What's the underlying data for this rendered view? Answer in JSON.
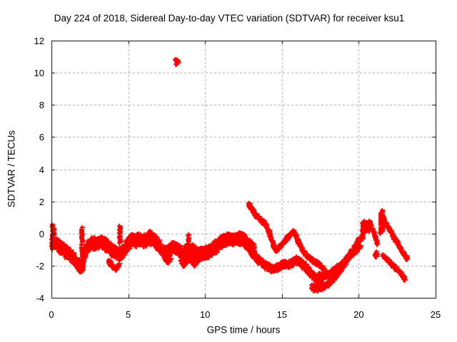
{
  "chart_data": {
    "type": "scatter",
    "title": "Day 224 of 2018, Sidereal Day-to-day VTEC variation (SDTVAR) for receiver ksu1",
    "xlabel": "GPS time / hours",
    "ylabel": "SDTVAR / TECUs",
    "xlim": [
      0,
      25
    ],
    "ylim": [
      -4,
      12
    ],
    "xticks": [
      0,
      5,
      10,
      15,
      20,
      25
    ],
    "yticks": [
      -4,
      -2,
      0,
      2,
      4,
      6,
      8,
      10,
      12
    ],
    "grid": true,
    "legend": "none",
    "marker": "plus",
    "colors": {
      "points": "#ff0000",
      "grid": "#a6a6a6",
      "border": "#000000",
      "background": "#ffffff",
      "text": "#000000"
    },
    "tracks": [
      {
        "name": "main-band",
        "halfwidth": 0.42,
        "points": [
          [
            0.0,
            -0.45
          ],
          [
            0.25,
            -0.6
          ],
          [
            0.5,
            -0.8
          ],
          [
            0.8,
            -1.0
          ],
          [
            1.1,
            -1.25
          ],
          [
            1.4,
            -1.55
          ],
          [
            1.7,
            -1.85
          ],
          [
            1.95,
            -2.05
          ],
          [
            2.1,
            -1.45
          ],
          [
            2.3,
            -0.85
          ],
          [
            2.55,
            -0.6
          ],
          [
            2.85,
            -0.65
          ],
          [
            3.15,
            -0.5
          ],
          [
            3.45,
            -0.6
          ],
          [
            3.75,
            -0.9
          ],
          [
            4.05,
            -1.1
          ],
          [
            4.35,
            -1.3
          ],
          [
            4.6,
            -1.2
          ],
          [
            4.9,
            -0.75
          ],
          [
            5.2,
            -0.35
          ],
          [
            5.5,
            -0.45
          ],
          [
            5.8,
            -0.35
          ],
          [
            6.1,
            -0.45
          ],
          [
            6.4,
            -0.25
          ],
          [
            6.7,
            -0.45
          ],
          [
            7.0,
            -0.8
          ],
          [
            7.3,
            -1.1
          ],
          [
            7.6,
            -1.15
          ],
          [
            7.9,
            -0.8
          ],
          [
            8.2,
            -0.9
          ],
          [
            8.5,
            -1.25
          ],
          [
            8.8,
            -1.05
          ],
          [
            9.1,
            -0.95
          ],
          [
            9.4,
            -1.2
          ],
          [
            9.7,
            -1.3
          ],
          [
            10.0,
            -1.2
          ],
          [
            10.3,
            -1.05
          ],
          [
            10.6,
            -0.85
          ],
          [
            10.9,
            -0.6
          ],
          [
            11.2,
            -0.4
          ],
          [
            11.5,
            -0.3
          ],
          [
            11.8,
            -0.4
          ],
          [
            12.1,
            -0.3
          ],
          [
            12.4,
            -0.3
          ],
          [
            12.7,
            -0.6
          ],
          [
            13.0,
            -0.85
          ],
          [
            13.2,
            -1.0
          ]
        ]
      },
      {
        "name": "dip-spur-2h",
        "halfwidth": 0.13,
        "points": [
          [
            1.65,
            -2.1
          ],
          [
            1.85,
            -2.3
          ],
          [
            2.05,
            -2.15
          ]
        ]
      },
      {
        "name": "dip-spur-4h",
        "halfwidth": 0.15,
        "points": [
          [
            3.7,
            -1.7
          ],
          [
            3.95,
            -2.05
          ],
          [
            4.2,
            -2.2
          ],
          [
            4.4,
            -1.9
          ]
        ]
      },
      {
        "name": "dip-spur-7.5h",
        "halfwidth": 0.12,
        "points": [
          [
            7.3,
            -1.5
          ],
          [
            7.55,
            -1.75
          ],
          [
            7.75,
            -1.55
          ]
        ]
      },
      {
        "name": "dip-spur-8.6h",
        "halfwidth": 0.12,
        "points": [
          [
            8.4,
            -1.65
          ],
          [
            8.6,
            -1.95
          ],
          [
            8.8,
            -1.75
          ]
        ]
      },
      {
        "name": "dip-spur-9.3h",
        "halfwidth": 0.18,
        "points": [
          [
            9.0,
            -1.55
          ],
          [
            9.3,
            -1.85
          ],
          [
            9.55,
            -1.6
          ]
        ]
      },
      {
        "name": "peak-streak-13h",
        "halfwidth": 0.13,
        "points": [
          [
            12.82,
            1.85
          ],
          [
            13.0,
            1.55
          ],
          [
            13.2,
            1.25
          ],
          [
            13.45,
            1.0
          ],
          [
            13.7,
            0.8
          ],
          [
            13.95,
            0.55
          ],
          [
            14.1,
            0.2
          ],
          [
            14.3,
            -0.4
          ],
          [
            14.5,
            -0.9
          ],
          [
            14.65,
            -1.0
          ],
          [
            14.85,
            -0.85
          ],
          [
            15.1,
            -0.55
          ],
          [
            15.35,
            -0.25
          ],
          [
            15.6,
            0.0
          ],
          [
            15.75,
            0.1
          ],
          [
            15.9,
            -0.15
          ],
          [
            16.05,
            -0.5
          ],
          [
            16.25,
            -0.9
          ],
          [
            16.5,
            -1.25
          ],
          [
            16.75,
            -1.5
          ],
          [
            17.05,
            -1.7
          ],
          [
            17.35,
            -1.85
          ],
          [
            17.65,
            -2.15
          ],
          [
            17.95,
            -2.5
          ]
        ]
      },
      {
        "name": "lower-band-14h",
        "halfwidth": 0.25,
        "points": [
          [
            12.5,
            -0.5
          ],
          [
            12.75,
            -0.8
          ],
          [
            13.0,
            -1.15
          ],
          [
            13.25,
            -1.45
          ],
          [
            13.5,
            -1.65
          ],
          [
            13.75,
            -1.85
          ],
          [
            14.0,
            -2.0
          ],
          [
            14.25,
            -2.15
          ],
          [
            14.5,
            -2.2
          ],
          [
            14.75,
            -2.1
          ],
          [
            15.0,
            -1.95
          ],
          [
            15.25,
            -1.85
          ],
          [
            15.5,
            -1.9
          ],
          [
            15.7,
            -1.75
          ],
          [
            15.95,
            -1.65
          ],
          [
            16.2,
            -1.8
          ],
          [
            16.45,
            -2.05
          ],
          [
            16.7,
            -2.3
          ],
          [
            16.95,
            -2.55
          ],
          [
            17.2,
            -2.8
          ],
          [
            17.45,
            -3.0
          ],
          [
            17.6,
            -3.15
          ]
        ]
      },
      {
        "name": "trough-rise-18h",
        "halfwidth": 0.2,
        "points": [
          [
            16.9,
            -3.25
          ],
          [
            17.15,
            -3.4
          ],
          [
            17.4,
            -3.35
          ],
          [
            17.65,
            -3.3
          ],
          [
            17.9,
            -3.15
          ],
          [
            18.15,
            -3.0
          ],
          [
            18.4,
            -2.75
          ],
          [
            18.65,
            -2.45
          ],
          [
            18.9,
            -2.1
          ],
          [
            19.15,
            -1.75
          ],
          [
            19.4,
            -1.35
          ],
          [
            19.65,
            -0.95
          ],
          [
            19.9,
            -0.55
          ],
          [
            20.1,
            -0.3
          ]
        ]
      },
      {
        "name": "rise-strand-19h",
        "halfwidth": 0.16,
        "points": [
          [
            17.4,
            -2.6
          ],
          [
            17.7,
            -2.65
          ],
          [
            18.0,
            -2.55
          ],
          [
            18.3,
            -2.35
          ],
          [
            18.6,
            -2.1
          ],
          [
            18.9,
            -1.85
          ],
          [
            19.2,
            -1.55
          ],
          [
            19.5,
            -1.3
          ],
          [
            19.8,
            -1.05
          ],
          [
            20.1,
            -0.85
          ]
        ]
      },
      {
        "name": "cluster-edge-21h",
        "halfwidth": 0.1,
        "points": [
          [
            20.75,
            0.6
          ],
          [
            20.9,
            0.25
          ],
          [
            21.05,
            -0.2
          ],
          [
            21.2,
            -0.65
          ]
        ]
      },
      {
        "name": "fall-streak-22h",
        "halfwidth": 0.12,
        "points": [
          [
            21.55,
            0.9
          ],
          [
            21.75,
            0.6
          ],
          [
            21.95,
            0.3
          ],
          [
            22.15,
            0.0
          ],
          [
            22.35,
            -0.35
          ],
          [
            22.55,
            -0.7
          ],
          [
            22.75,
            -1.0
          ],
          [
            22.95,
            -1.3
          ],
          [
            23.15,
            -1.6
          ]
        ]
      },
      {
        "name": "fall-streak-lower-22h",
        "halfwidth": 0.12,
        "points": [
          [
            21.55,
            -1.35
          ],
          [
            21.8,
            -1.55
          ],
          [
            22.05,
            -1.8
          ],
          [
            22.3,
            -2.05
          ],
          [
            22.55,
            -2.3
          ],
          [
            22.8,
            -2.55
          ],
          [
            23.0,
            -2.8
          ]
        ]
      }
    ],
    "columns": [
      {
        "x": 0.05,
        "y0": -1.0,
        "y1": 0.55
      },
      {
        "x": 0.12,
        "y0": -0.7,
        "y1": 0.3
      },
      {
        "x": 1.98,
        "y0": -1.5,
        "y1": 0.35
      },
      {
        "x": 4.45,
        "y0": -0.6,
        "y1": 0.45
      },
      {
        "x": 8.9,
        "y0": -1.5,
        "y1": -0.1
      },
      {
        "x": 20.25,
        "y0": -0.35,
        "y1": 0.65
      },
      {
        "x": 20.33,
        "y0": 0.0,
        "y1": 0.8
      },
      {
        "x": 21.42,
        "y0": 0.0,
        "y1": 1.3
      },
      {
        "x": 21.52,
        "y0": 0.15,
        "y1": 1.45
      }
    ],
    "clusters": [
      {
        "name": "outlier-8h",
        "cx": 8.16,
        "cy": 10.75,
        "rx": 0.12,
        "ry": 0.32,
        "n": 16
      },
      {
        "name": "cluster-20.5h",
        "cx": 20.58,
        "cy": 0.5,
        "rx": 0.22,
        "ry": 0.45,
        "n": 60
      },
      {
        "name": "blob-21h",
        "cx": 21.1,
        "cy": -1.3,
        "rx": 0.12,
        "ry": 0.2,
        "n": 12
      },
      {
        "name": "cluster-21.5h",
        "cx": 21.55,
        "cy": 0.65,
        "rx": 0.12,
        "ry": 0.55,
        "n": 40
      }
    ]
  }
}
